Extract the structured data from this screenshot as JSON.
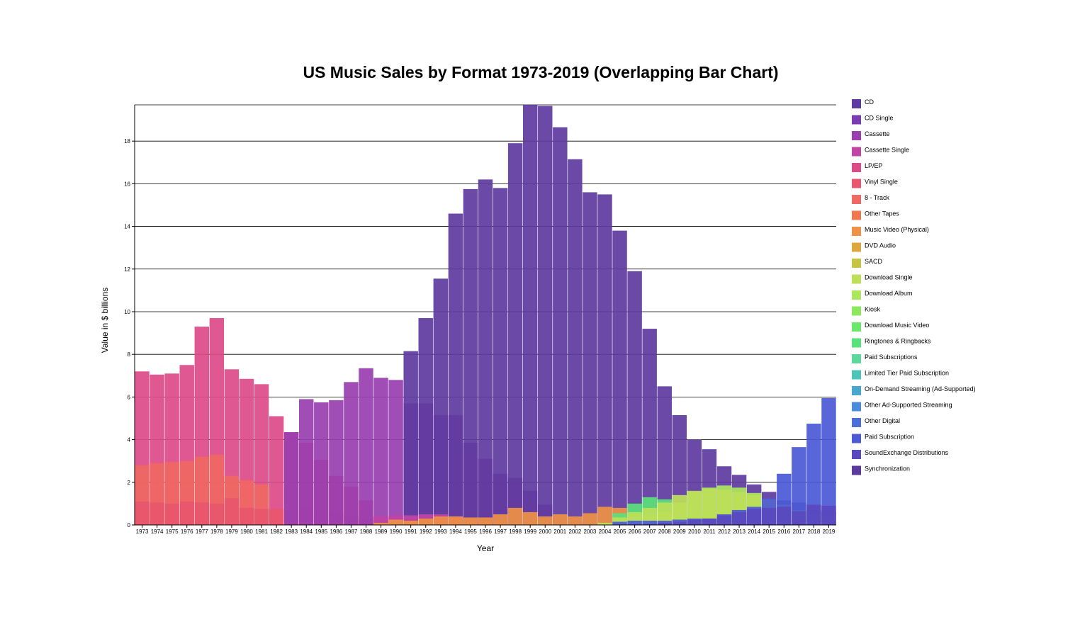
{
  "chart_data": {
    "type": "bar",
    "variant": "overlapping",
    "title": "US Music Sales by Format 1973-2019 (Overlapping Bar Chart)",
    "xlabel": "Year",
    "ylabel": "Value in $ billions",
    "ylim": [
      0,
      19.7
    ],
    "yticks": [
      0,
      2,
      4,
      6,
      8,
      10,
      12,
      14,
      16,
      18
    ],
    "grid": true,
    "legend_position": "right",
    "categories": [
      "1973",
      "1974",
      "1975",
      "1976",
      "1977",
      "1978",
      "1979",
      "1980",
      "1981",
      "1982",
      "1983",
      "1984",
      "1985",
      "1986",
      "1987",
      "1988",
      "1989",
      "1990",
      "1991",
      "1992",
      "1993",
      "1994",
      "1995",
      "1996",
      "1997",
      "1998",
      "1999",
      "2000",
      "2001",
      "2002",
      "2003",
      "2004",
      "2005",
      "2006",
      "2007",
      "2008",
      "2009",
      "2010",
      "2011",
      "2012",
      "2013",
      "2014",
      "2015",
      "2016",
      "2017",
      "2018",
      "2019"
    ],
    "legend": [
      {
        "name": "CD",
        "color": "#5e3aa0"
      },
      {
        "name": "CD Single",
        "color": "#7a3bb3"
      },
      {
        "name": "Cassette",
        "color": "#9a3eb0"
      },
      {
        "name": "Cassette Single",
        "color": "#c045a5"
      },
      {
        "name": "LP/EP",
        "color": "#dd4a88"
      },
      {
        "name": "Vinyl Single",
        "color": "#e9566e"
      },
      {
        "name": "8 - Track",
        "color": "#f06862"
      },
      {
        "name": "Other Tapes",
        "color": "#ef7a4f"
      },
      {
        "name": "Music Video (Physical)",
        "color": "#ef9245"
      },
      {
        "name": "DVD Audio",
        "color": "#dfa83c"
      },
      {
        "name": "SACD",
        "color": "#c6c440"
      },
      {
        "name": "Download Single",
        "color": "#bde058"
      },
      {
        "name": "Download Album",
        "color": "#abe85e"
      },
      {
        "name": "Kiosk",
        "color": "#8de85e"
      },
      {
        "name": "Download Music Video",
        "color": "#6ae86a"
      },
      {
        "name": "Ringtones & Ringbacks",
        "color": "#5ae27a"
      },
      {
        "name": "Paid Subscriptions",
        "color": "#5cd99a"
      },
      {
        "name": "Limited Tier Paid Subscription",
        "color": "#4dc4b8"
      },
      {
        "name": "On-Demand Streaming (Ad-Supported)",
        "color": "#46a8cf"
      },
      {
        "name": "Other Ad-Supported Streaming",
        "color": "#4a8ddd"
      },
      {
        "name": "Other Digital",
        "color": "#4a6fd9"
      },
      {
        "name": "Paid Subscription",
        "color": "#4c5ad6"
      },
      {
        "name": "SoundExchange Distributions",
        "color": "#5a48c0"
      },
      {
        "name": "Synchronization",
        "color": "#5c3a9c"
      }
    ],
    "series": [
      {
        "name": "LP/EP",
        "values": [
          7.2,
          7.05,
          7.1,
          7.5,
          9.3,
          9.7,
          7.3,
          6.85,
          6.6,
          5.1,
          4.35,
          3.85,
          3.05,
          2.3,
          1.8,
          1.15,
          0.4,
          0.3,
          0.1,
          0.05,
          0.02,
          0.03,
          0.05,
          0.04,
          0.03,
          0.03,
          0.03,
          0.03,
          0.03,
          0.02,
          0.02,
          0.02,
          0.02,
          0.02,
          0.02,
          0.05,
          0.09,
          0.09,
          0.13,
          0.16,
          0.21,
          0.34,
          0.42,
          0.44,
          0.54,
          0.55,
          0.67
        ]
      },
      {
        "name": "8 - Track",
        "values": [
          2.8,
          2.9,
          2.95,
          3.0,
          3.2,
          3.3,
          2.3,
          2.1,
          1.9,
          0,
          0,
          0,
          0,
          0,
          0,
          0,
          0,
          0,
          0,
          0,
          0,
          0,
          0,
          0,
          0,
          0,
          0,
          0,
          0,
          0,
          0,
          0,
          0,
          0,
          0,
          0,
          0,
          0,
          0,
          0,
          0,
          0,
          0,
          0,
          0,
          0,
          0
        ]
      },
      {
        "name": "Vinyl Single",
        "values": [
          1.1,
          1.05,
          1.0,
          1.1,
          1.05,
          1.0,
          1.25,
          0.8,
          0.75,
          0.75,
          0.7,
          0.75,
          0.65,
          0.55,
          0.45,
          0.3,
          0.2,
          0.1,
          0.1,
          0.1,
          0.1,
          0.1,
          0.1,
          0.1,
          0.1,
          0.05,
          0.05,
          0.05,
          0.03,
          0.02,
          0.02,
          0.02,
          0.02,
          0.01,
          0,
          0,
          0,
          0,
          0,
          0,
          0,
          0,
          0,
          0,
          0,
          0,
          0
        ]
      },
      {
        "name": "Cassette",
        "values": [
          0,
          0,
          0,
          0,
          0,
          0,
          0,
          0,
          0,
          0,
          4.35,
          5.9,
          5.75,
          5.85,
          6.7,
          7.35,
          6.9,
          6.8,
          5.7,
          5.7,
          5.15,
          5.15,
          3.85,
          3.1,
          2.4,
          2.2,
          1.6,
          0.95,
          0.35,
          0.2,
          0.1,
          0.05,
          0.02,
          0.01,
          0,
          0,
          0,
          0,
          0,
          0,
          0,
          0,
          0,
          0,
          0,
          0,
          0
        ]
      },
      {
        "name": "CD",
        "values": [
          0,
          0,
          0,
          0,
          0,
          0,
          0,
          0,
          0,
          0,
          0,
          0,
          0,
          0,
          0,
          0,
          0,
          0,
          8.15,
          9.7,
          11.55,
          14.6,
          15.75,
          16.2,
          15.8,
          17.9,
          19.7,
          19.65,
          18.65,
          17.15,
          15.6,
          15.5,
          13.8,
          11.9,
          9.2,
          6.5,
          5.15,
          4.0,
          3.55,
          2.75,
          2.35,
          1.9,
          1.55,
          1.15,
          1.05,
          0.7,
          0.6
        ]
      },
      {
        "name": "Cassette Single",
        "values": [
          0,
          0,
          0,
          0,
          0,
          0,
          0,
          0,
          0,
          0,
          0,
          0,
          0,
          0,
          0,
          0,
          0.4,
          0.45,
          0.45,
          0.5,
          0.5,
          0.4,
          0.3,
          0.2,
          0.1,
          0.05,
          0.03,
          0.02,
          0,
          0,
          0,
          0,
          0,
          0,
          0,
          0,
          0,
          0,
          0,
          0,
          0,
          0,
          0,
          0,
          0,
          0,
          0
        ]
      },
      {
        "name": "Music Video (Physical)",
        "values": [
          0,
          0,
          0,
          0,
          0,
          0,
          0,
          0,
          0,
          0,
          0,
          0,
          0,
          0,
          0,
          0,
          0.1,
          0.25,
          0.2,
          0.3,
          0.4,
          0.4,
          0.35,
          0.35,
          0.5,
          0.8,
          0.6,
          0.4,
          0.5,
          0.4,
          0.55,
          0.85,
          0.8,
          0.5,
          0.45,
          0.2,
          0.2,
          0.15,
          0.15,
          0.1,
          0.1,
          0.08,
          0.06,
          0.05,
          0.05,
          0.03,
          0.03
        ]
      },
      {
        "name": "Ringtones & Ringbacks",
        "values": [
          0,
          0,
          0,
          0,
          0,
          0,
          0,
          0,
          0,
          0,
          0,
          0,
          0,
          0,
          0,
          0,
          0,
          0,
          0,
          0,
          0,
          0,
          0,
          0,
          0,
          0,
          0,
          0,
          0,
          0,
          0,
          0,
          0.55,
          1.0,
          1.3,
          1.2,
          0.85,
          0.55,
          0.3,
          0.15,
          0.1,
          0.06,
          0.05,
          0.03,
          0.02,
          0.02,
          0.02
        ]
      },
      {
        "name": "Download Album",
        "values": [
          0,
          0,
          0,
          0,
          0,
          0,
          0,
          0,
          0,
          0,
          0,
          0,
          0,
          0,
          0,
          0,
          0,
          0,
          0,
          0,
          0,
          0,
          0,
          0,
          0,
          0,
          0,
          0,
          0,
          0,
          0,
          0.05,
          0.15,
          0.3,
          0.45,
          0.6,
          1.05,
          1.55,
          1.75,
          1.85,
          1.75,
          1.5,
          1.2,
          0.95,
          0.65,
          0.5,
          0.45
        ]
      },
      {
        "name": "Download Single",
        "values": [
          0,
          0,
          0,
          0,
          0,
          0,
          0,
          0,
          0,
          0,
          0,
          0,
          0,
          0,
          0,
          0,
          0,
          0,
          0,
          0,
          0,
          0,
          0,
          0,
          0,
          0,
          0,
          0,
          0,
          0,
          0,
          0.1,
          0.35,
          0.6,
          0.8,
          1.05,
          1.4,
          1.6,
          1.7,
          1.65,
          1.55,
          1.4,
          1.2,
          0.95,
          0.7,
          0.5,
          0.4
        ]
      },
      {
        "name": "Paid Subscription",
        "values": [
          0,
          0,
          0,
          0,
          0,
          0,
          0,
          0,
          0,
          0,
          0,
          0,
          0,
          0,
          0,
          0,
          0,
          0,
          0,
          0,
          0,
          0,
          0,
          0,
          0,
          0,
          0,
          0,
          0,
          0,
          0,
          0,
          0.15,
          0.2,
          0.2,
          0.2,
          0.25,
          0.3,
          0.3,
          0.5,
          0.7,
          0.85,
          1.25,
          2.4,
          3.65,
          4.75,
          5.95
        ]
      },
      {
        "name": "SoundExchange Distributions",
        "values": [
          0,
          0,
          0,
          0,
          0,
          0,
          0,
          0,
          0,
          0,
          0,
          0,
          0,
          0,
          0,
          0,
          0,
          0,
          0,
          0,
          0,
          0,
          0,
          0,
          0,
          0,
          0,
          0,
          0,
          0,
          0,
          0,
          0.02,
          0.03,
          0.04,
          0.1,
          0.15,
          0.25,
          0.3,
          0.45,
          0.6,
          0.75,
          0.8,
          0.85,
          0.65,
          0.95,
          0.9
        ]
      }
    ]
  }
}
